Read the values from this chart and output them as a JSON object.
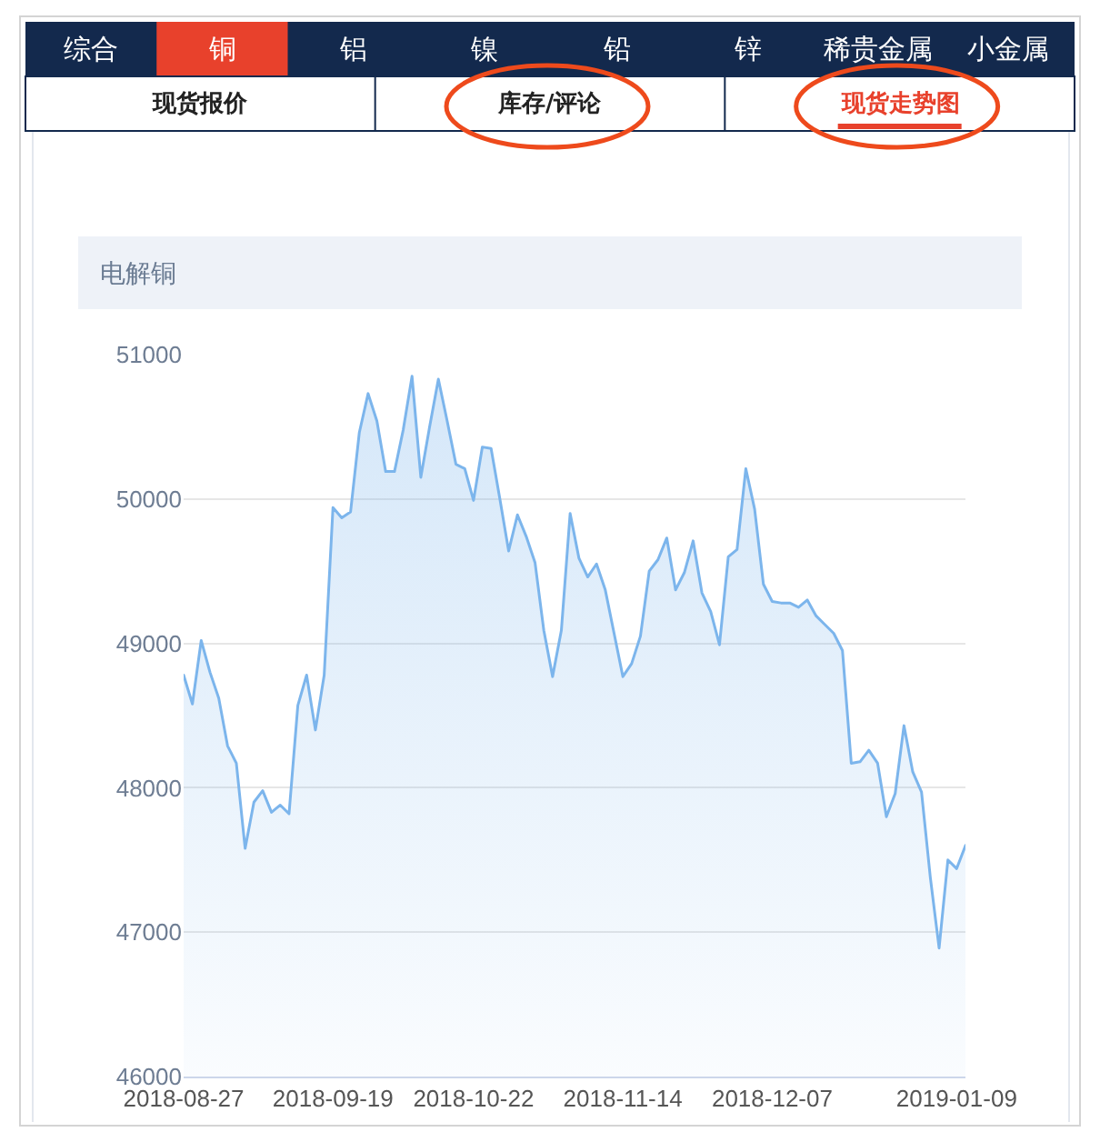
{
  "chart_data": {
    "type": "area",
    "title": "电解铜",
    "annotations": [
      "综合",
      "铜",
      "铝",
      "镍",
      "铅",
      "锌",
      "稀贵金属",
      "小金属",
      "现货报价",
      "库存/评论",
      "现货走势图"
    ],
    "categories": [
      "2018-08-27",
      null,
      null,
      null,
      null,
      null,
      null,
      null,
      null,
      null,
      null,
      null,
      null,
      null,
      null,
      null,
      null,
      "2018-09-19",
      null,
      null,
      null,
      null,
      null,
      null,
      null,
      null,
      null,
      null,
      null,
      null,
      null,
      null,
      null,
      "2018-10-22",
      null,
      null,
      null,
      null,
      null,
      null,
      null,
      null,
      null,
      null,
      null,
      null,
      null,
      null,
      null,
      null,
      "2018-11-14",
      null,
      null,
      null,
      null,
      null,
      null,
      null,
      null,
      null,
      null,
      null,
      null,
      null,
      null,
      null,
      null,
      "2018-12-07",
      null,
      null,
      null,
      null,
      null,
      null,
      null,
      null,
      null,
      null,
      null,
      null,
      null,
      null,
      null,
      null,
      null,
      null,
      null,
      null,
      "2019-01-09",
      null
    ],
    "series": [
      {
        "color": "#7cb5ec",
        "values": [
          48780,
          48580,
          49020,
          48800,
          48620,
          48290,
          48170,
          47580,
          47900,
          47980,
          47830,
          47880,
          47820,
          48570,
          48780,
          48400,
          48780,
          49940,
          49870,
          49910,
          50460,
          50730,
          50540,
          50190,
          50190,
          50480,
          50850,
          50150,
          50500,
          50830,
          50540,
          50240,
          50210,
          49990,
          50360,
          50350,
          50000,
          49640,
          49890,
          49740,
          49560,
          49090,
          48770,
          49090,
          49900,
          49590,
          49460,
          49550,
          49370,
          49070,
          48770,
          48860,
          49050,
          49500,
          49580,
          49730,
          49370,
          49490,
          49710,
          49350,
          49220,
          48990,
          49600,
          49650,
          50210,
          49930,
          49410,
          49290,
          49280,
          49280,
          49250,
          49300,
          49190,
          49130,
          49070,
          48950,
          48170,
          48180,
          48260,
          48170,
          47800,
          47960,
          48430,
          48110,
          47970,
          47380,
          46890,
          47500,
          47440,
          47600
        ]
      }
    ],
    "ylim": [
      46000,
      51000
    ],
    "yticks": [
      46000,
      47000,
      48000,
      49000,
      50000,
      51000
    ],
    "grid": "y",
    "marker": "none"
  }
}
